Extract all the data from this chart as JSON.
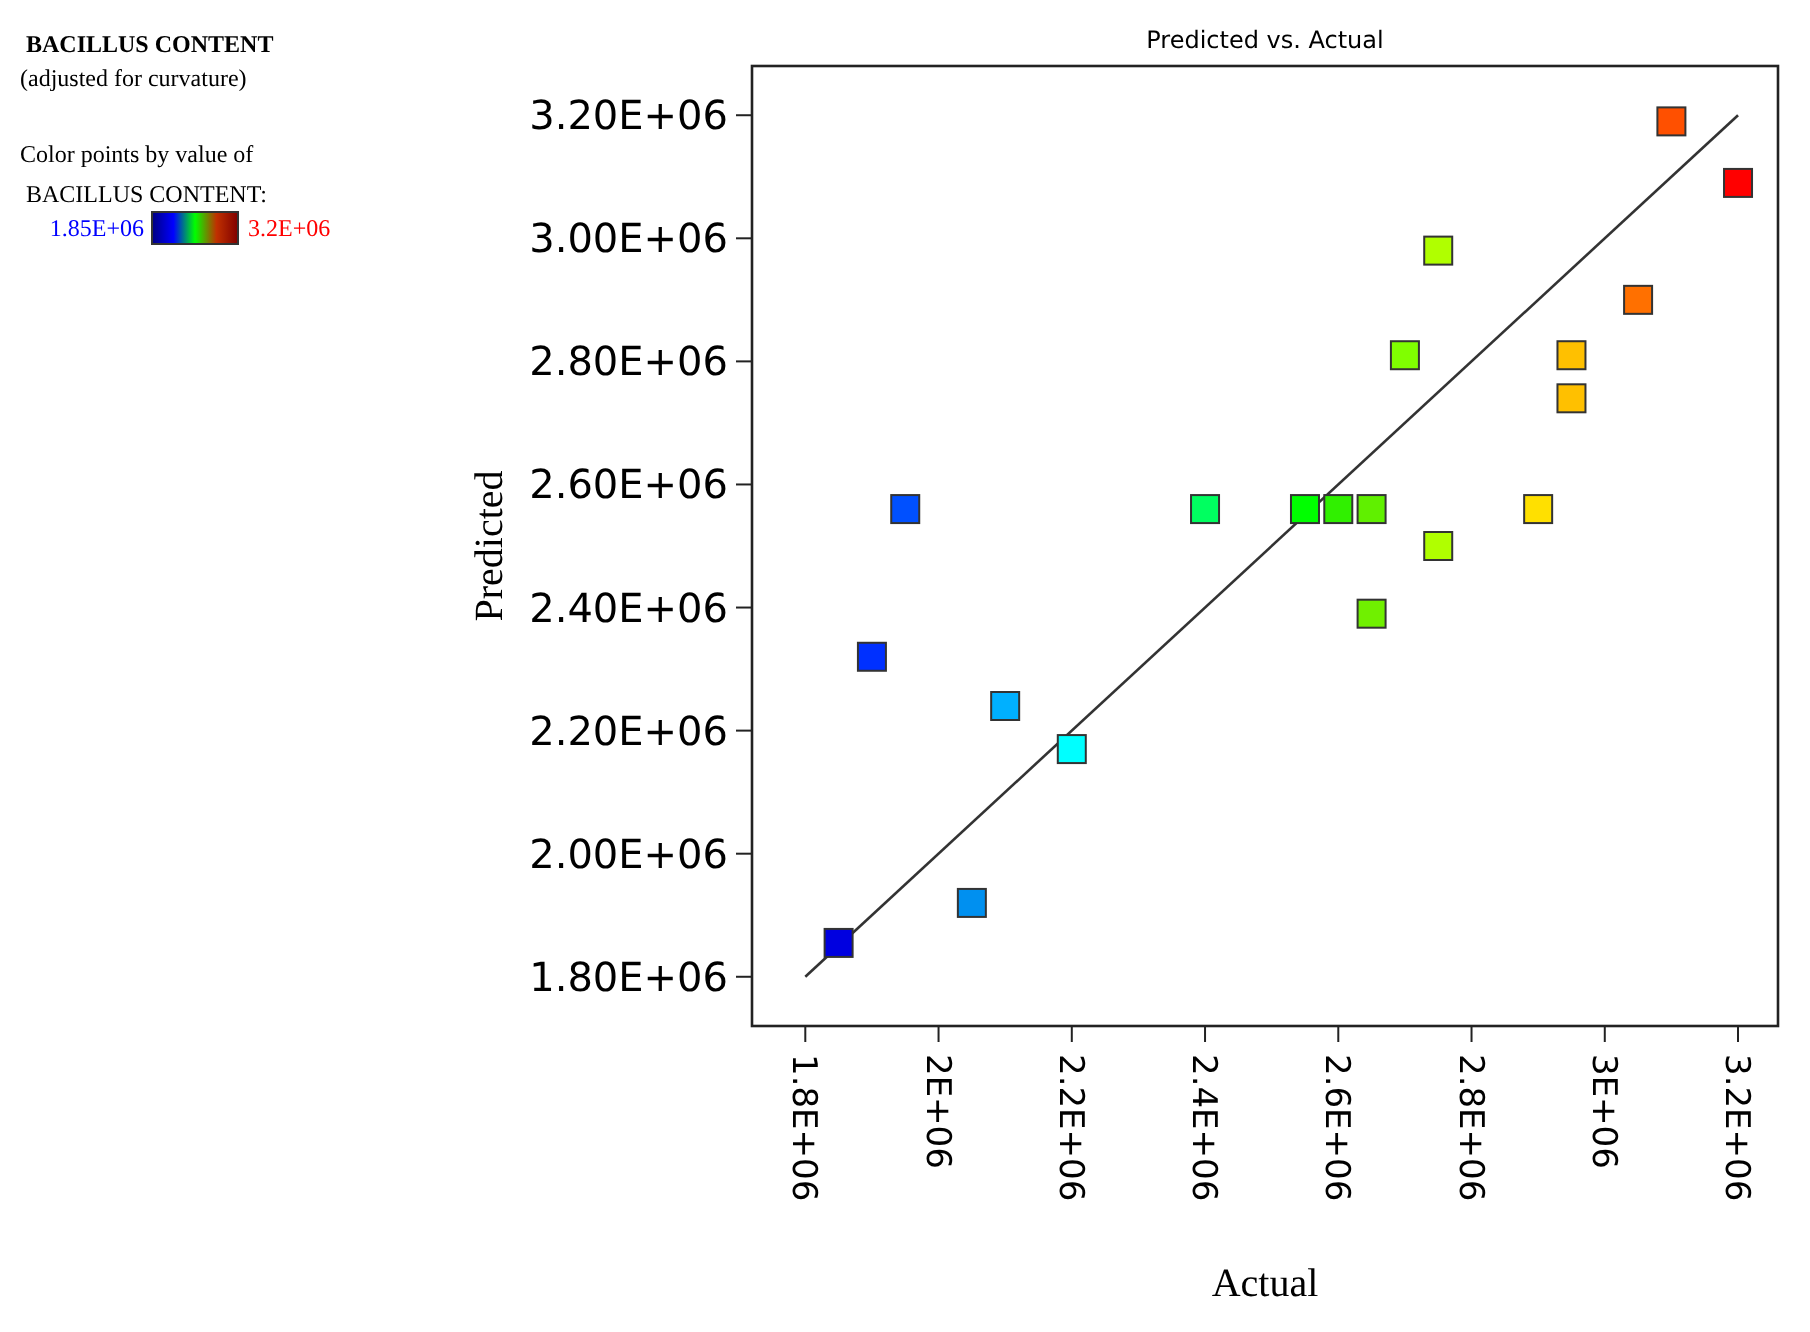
{
  "chart_data": {
    "type": "scatter",
    "title": "Predicted vs. Actual",
    "xlabel": "Actual",
    "ylabel": "Predicted",
    "annotations": [
      "BACILLUS CONTENT",
      "(adjusted for curvature)",
      "Color points by value of",
      "BACILLUS CONTENT:",
      "1.85E+06",
      "3.2E+06"
    ],
    "xlim": [
      1720000,
      3260000
    ],
    "ylim": [
      1720000,
      3280000
    ],
    "xticks": [
      {
        "value": 1800000,
        "label": "1.8E+06"
      },
      {
        "value": 2000000,
        "label": "2E+06"
      },
      {
        "value": 2200000,
        "label": "2.2E+06"
      },
      {
        "value": 2400000,
        "label": "2.4E+06"
      },
      {
        "value": 2600000,
        "label": "2.6E+06"
      },
      {
        "value": 2800000,
        "label": "2.8E+06"
      },
      {
        "value": 3000000,
        "label": "3E+06"
      },
      {
        "value": 3200000,
        "label": "3.2E+06"
      }
    ],
    "yticks": [
      {
        "value": 1800000,
        "label": "1.80E+06"
      },
      {
        "value": 2000000,
        "label": "2.00E+06"
      },
      {
        "value": 2200000,
        "label": "2.20E+06"
      },
      {
        "value": 2400000,
        "label": "2.40E+06"
      },
      {
        "value": 2600000,
        "label": "2.60E+06"
      },
      {
        "value": 2800000,
        "label": "2.80E+06"
      },
      {
        "value": 3000000,
        "label": "3.00E+06"
      },
      {
        "value": 3200000,
        "label": "3.20E+06"
      }
    ],
    "marker": "square",
    "series": [
      {
        "type": "line",
        "color": "#333333",
        "marker": "none",
        "x": [
          1800000,
          3200000
        ],
        "values": [
          1800000,
          3200000
        ]
      },
      {
        "x": [
          1850000,
          1900000,
          1950000,
          2050000,
          2100000,
          2200000,
          2400000,
          2550000,
          2600000,
          2650000,
          2650000,
          2700000,
          2750000,
          2750000,
          2900000,
          2950000,
          2950000,
          3050000,
          3100000,
          3200000
        ],
        "values": [
          1855000,
          2320000,
          2560000,
          1920000,
          2240000,
          2170000,
          2560000,
          2560000,
          2560000,
          2560000,
          2390000,
          2810000,
          2980000,
          2500000,
          2560000,
          2810000,
          2740000,
          2900000,
          3190000,
          3090000
        ],
        "colors": [
          "#0000e0",
          "#0030ff",
          "#0050ff",
          "#0090f0",
          "#00b0ff",
          "#00ffff",
          "#00ff60",
          "#00ff00",
          "#30f000",
          "#60f000",
          "#70f000",
          "#80ff00",
          "#b0ff00",
          "#b0ff00",
          "#ffe000",
          "#ffc000",
          "#ffc000",
          "#ff7000",
          "#ff5000",
          "#ff0000"
        ]
      }
    ]
  }
}
